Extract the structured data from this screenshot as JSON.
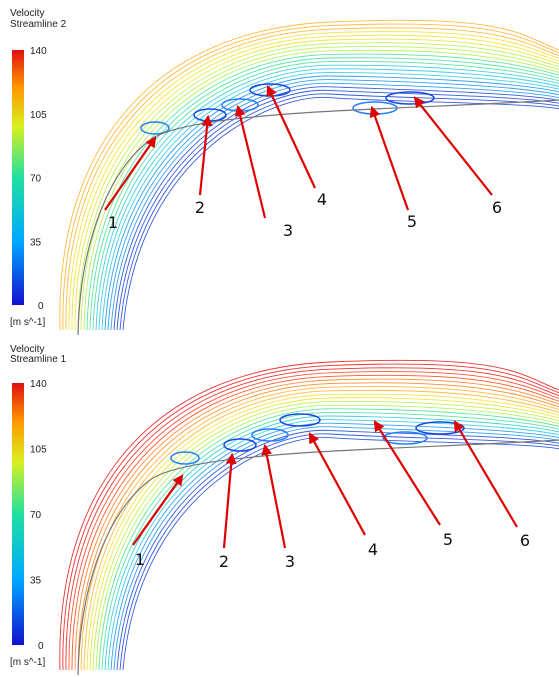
{
  "panels": [
    {
      "legend": {
        "title": "Velocity",
        "subtitle": "Streamline 2",
        "ticks": [
          "140",
          "105",
          "70",
          "35",
          "0"
        ],
        "unit": "[m s^-1]"
      },
      "labels": [
        "1",
        "2",
        "3",
        "4",
        "5",
        "6"
      ]
    },
    {
      "legend": {
        "title": "Velocity",
        "subtitle": "Streamline 1",
        "ticks": [
          "140",
          "105",
          "70",
          "35",
          "0"
        ],
        "unit": "[m s^-1]"
      },
      "labels": [
        "1",
        "2",
        "3",
        "4",
        "5",
        "6"
      ]
    }
  ]
}
